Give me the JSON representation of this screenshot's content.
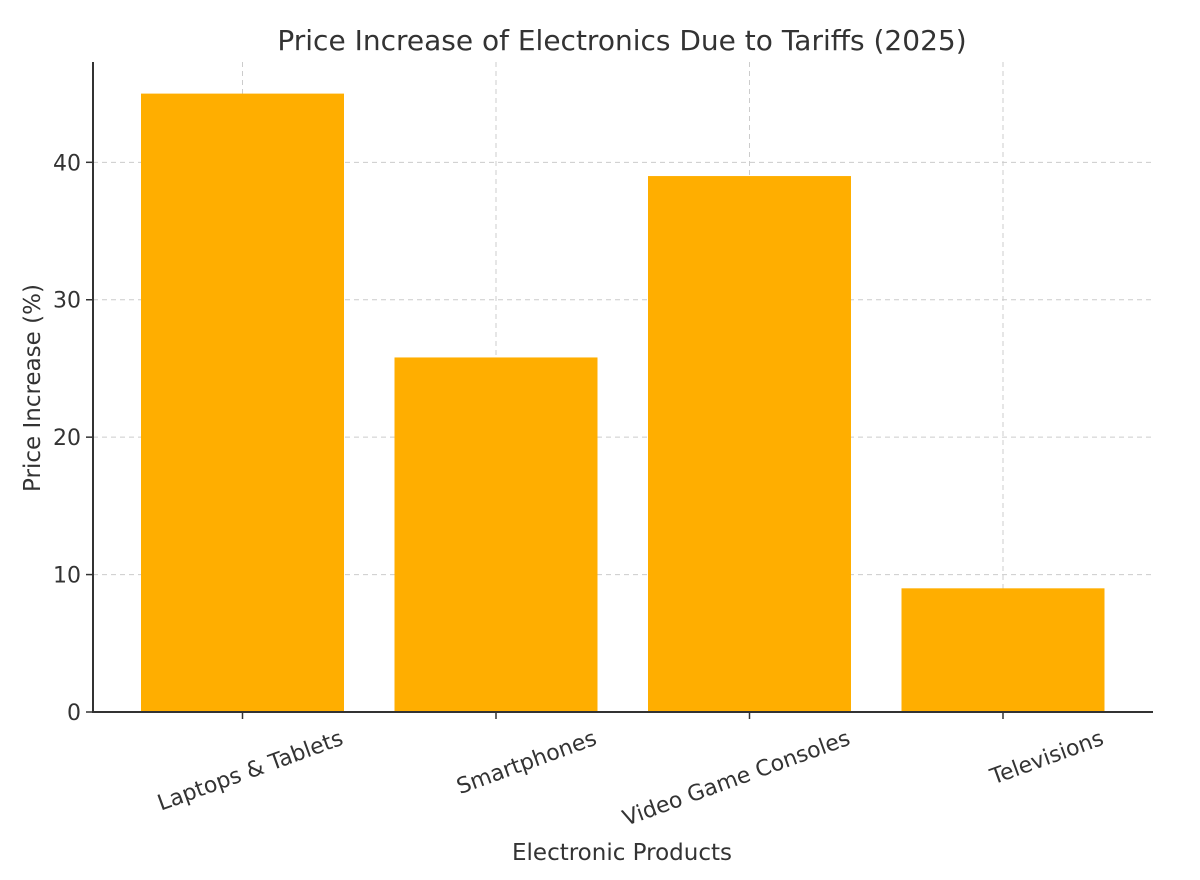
{
  "chart_data": {
    "type": "bar",
    "title": "Price Increase of Electronics Due to Tariffs (2025)",
    "xlabel": "Electronic Products",
    "ylabel": "Price Increase (%)",
    "categories": [
      "Laptops & Tablets",
      "Smartphones",
      "Video Game Consoles",
      "Televisions"
    ],
    "values": [
      45,
      25.8,
      39,
      9
    ],
    "ylim": [
      0,
      47.3
    ],
    "yticks": [
      0,
      10,
      20,
      30,
      40
    ],
    "grid": true,
    "bar_color": "#ffae00"
  }
}
